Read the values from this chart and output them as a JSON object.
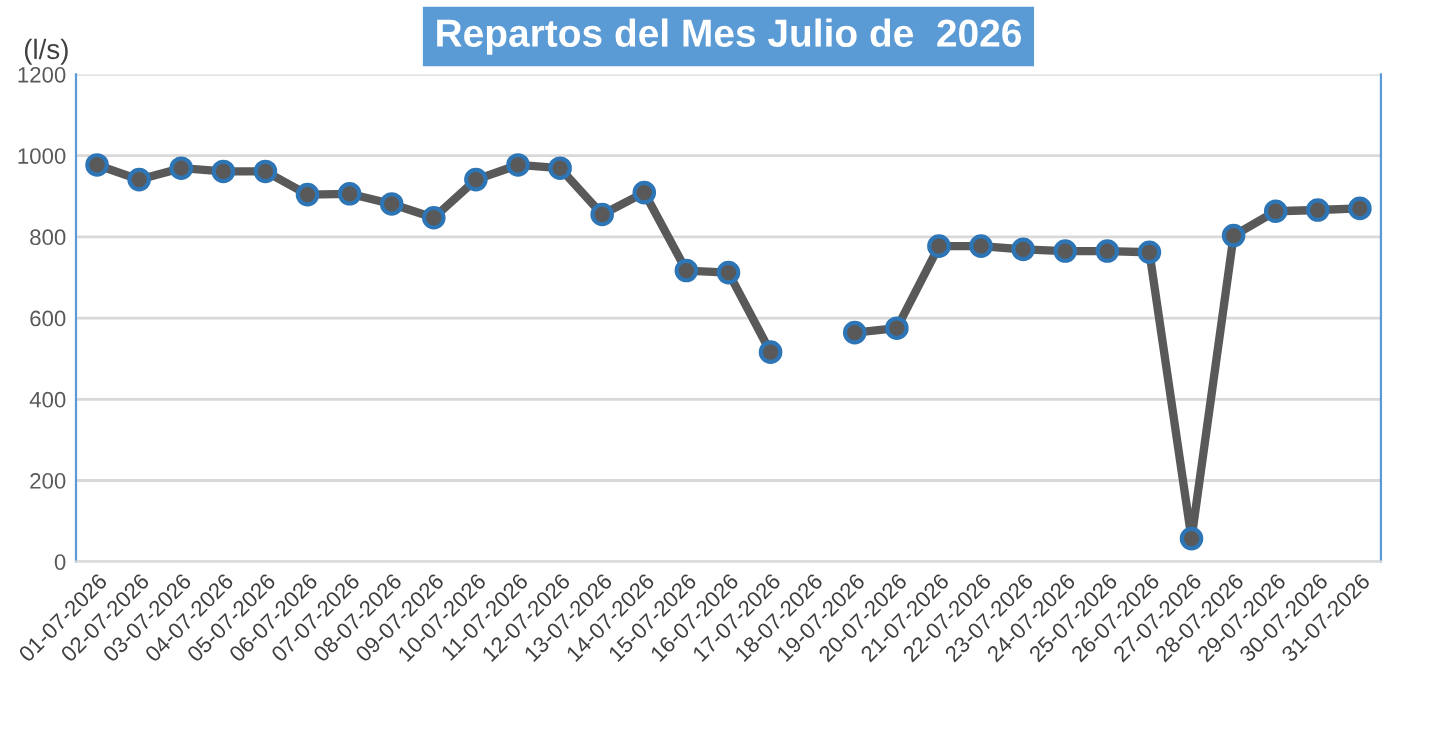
{
  "chart_data": {
    "type": "line",
    "title": "Repartos del Mes Julio de  2026",
    "ylabel": "(l/s)",
    "categories": [
      "01-07-2026",
      "02-07-2026",
      "03-07-2026",
      "04-07-2026",
      "05-07-2026",
      "06-07-2026",
      "07-07-2026",
      "08-07-2026",
      "09-07-2026",
      "10-07-2026",
      "11-07-2026",
      "12-07-2026",
      "13-07-2026",
      "14-07-2026",
      "15-07-2026",
      "16-07-2026",
      "17-07-2026",
      "18-07-2026",
      "19-07-2026",
      "20-07-2026",
      "21-07-2026",
      "22-07-2026",
      "23-07-2026",
      "24-07-2026",
      "25-07-2026",
      "26-07-2026",
      "27-07-2026",
      "28-07-2026",
      "29-07-2026",
      "30-07-2026",
      "31-07-2026"
    ],
    "series": [
      {
        "color": "#595959",
        "values": [
          977,
          941,
          969,
          961,
          961,
          904,
          906,
          881,
          847,
          941,
          977,
          969,
          855,
          909,
          717,
          712,
          516,
          null,
          564,
          575,
          777,
          777,
          769,
          765,
          765,
          762,
          57,
          803,
          863,
          866,
          870
        ]
      }
    ],
    "ylim": [
      0,
      1200
    ],
    "yticks": [
      0,
      200,
      400,
      600,
      800,
      1000,
      1200
    ],
    "grid": "y",
    "marker": "circle",
    "line_style": "solid",
    "legend": false
  }
}
